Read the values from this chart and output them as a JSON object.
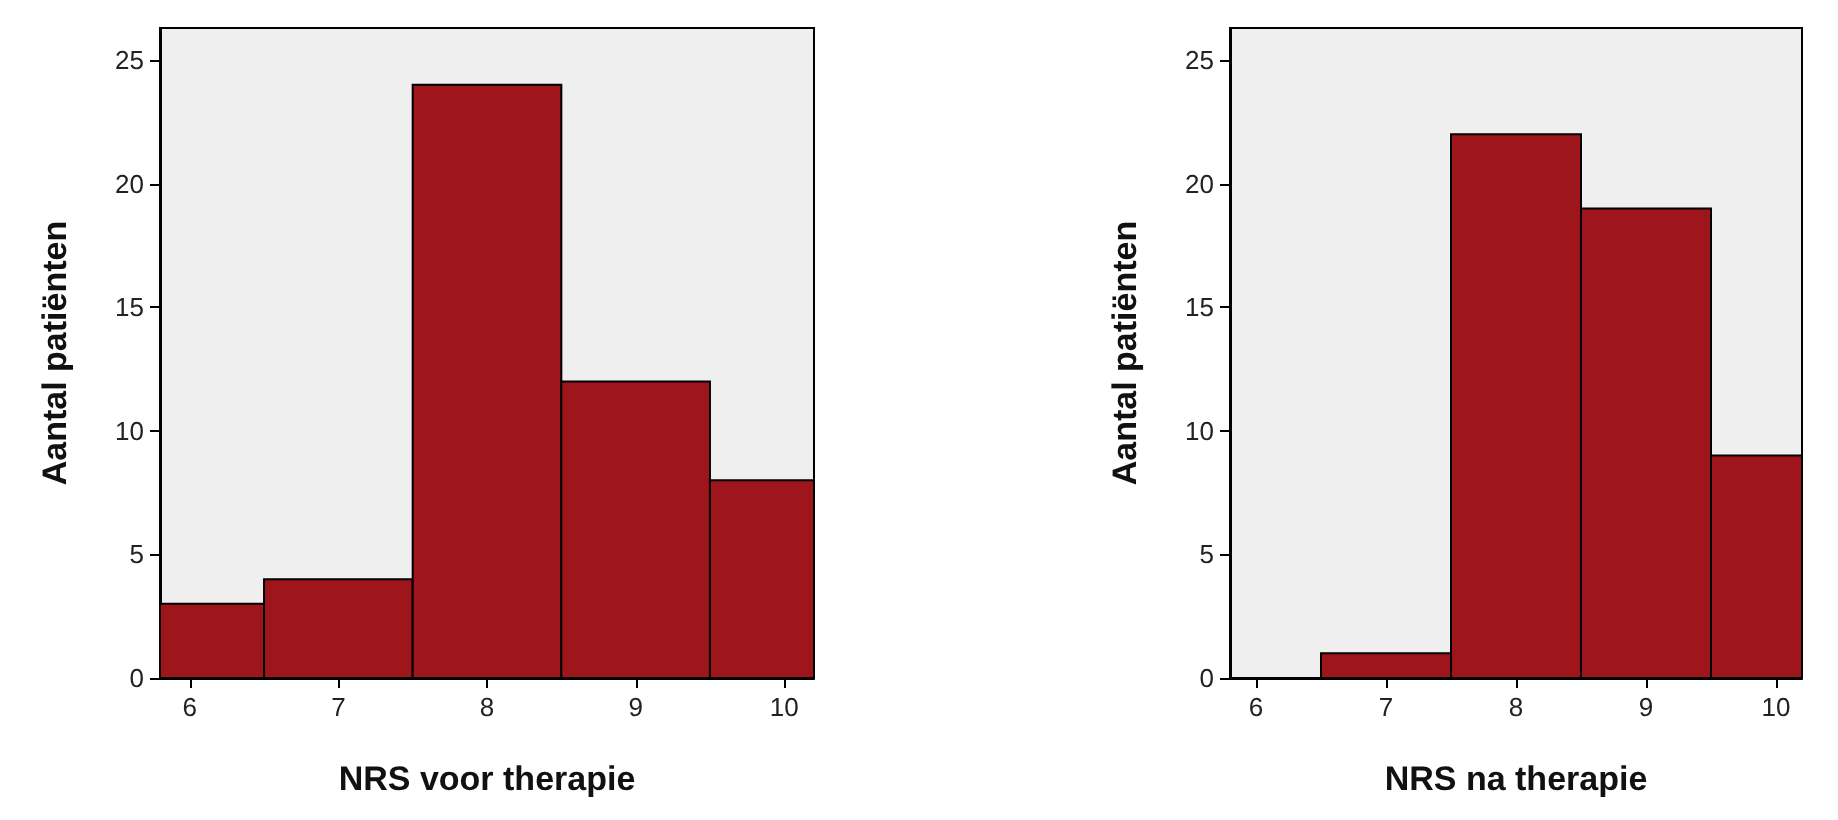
{
  "chart_data": [
    {
      "type": "histogram",
      "xlabel": "NRS voor therapie",
      "ylabel": "Aantal patiënten",
      "bins": [
        5.8,
        6.5,
        7.5,
        8.5,
        9.5,
        10.2
      ],
      "values": [
        3,
        4,
        24,
        12,
        8
      ],
      "color": "#9e161b",
      "xlim": [
        5.8,
        10.2
      ],
      "xticks": [
        6,
        7,
        8,
        9,
        10
      ],
      "ylim": [
        0,
        26.3
      ],
      "yticks": [
        0,
        5,
        10,
        15,
        20,
        25
      ]
    },
    {
      "type": "histogram",
      "xlabel": "NRS na therapie",
      "ylabel": "Aantal patiënten",
      "bins": [
        6.5,
        7.5,
        8.5,
        9.5,
        10.2
      ],
      "values": [
        1,
        22,
        19,
        9
      ],
      "color": "#9e161b",
      "xlim": [
        5.8,
        10.2
      ],
      "xticks": [
        6,
        7,
        8,
        9,
        10
      ],
      "ylim": [
        0,
        26.3
      ],
      "yticks": [
        0,
        5,
        10,
        15,
        20,
        25
      ]
    }
  ]
}
